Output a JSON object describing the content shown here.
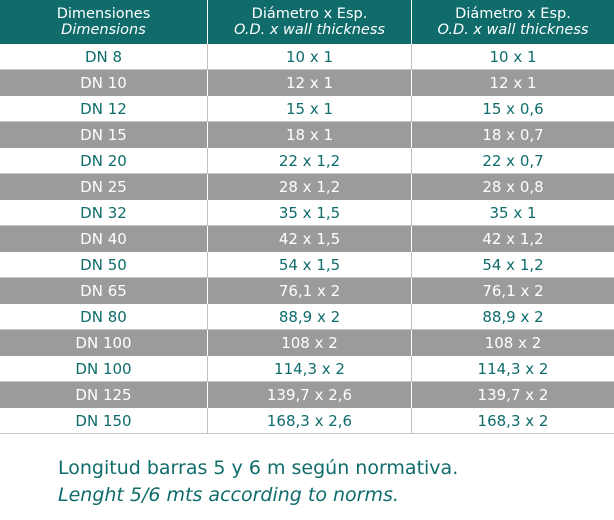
{
  "header": {
    "col1_es": "Dimensiones",
    "col1_en": "Dimensions",
    "col2_es": "Diámetro x Esp.",
    "col2_en": "O.D. x wall thickness",
    "col3_es": "Diámetro x Esp.",
    "col3_en": "O.D. x wall thickness"
  },
  "rows": [
    [
      "DN 8",
      "10 x 1",
      "10 x 1"
    ],
    [
      "DN 10",
      "12 x 1",
      "12 x 1"
    ],
    [
      "DN 12",
      "15 x 1",
      "15 x 0,6"
    ],
    [
      "DN 15",
      "18 x 1",
      "18 x 0,7"
    ],
    [
      "DN 20",
      "22 x 1,2",
      "22 x 0,7"
    ],
    [
      "DN 25",
      "28 x 1,2",
      "28 x 0,8"
    ],
    [
      "DN 32",
      "35 x 1,5",
      "35 x 1"
    ],
    [
      "DN 40",
      "42 x 1,5",
      "42 x 1,2"
    ],
    [
      "DN 50",
      "54 x 1,5",
      "54 x 1,2"
    ],
    [
      "DN 65",
      "76,1 x 2",
      "76,1 x 2"
    ],
    [
      "DN 80",
      "88,9 x 2",
      "88,9 x 2"
    ],
    [
      "DN 100",
      "108 x 2",
      "108 x 2"
    ],
    [
      "DN 100",
      "114,3 x 2",
      "114,3 x 2"
    ],
    [
      "DN 125",
      "139,7 x 2,6",
      "139,7 x 2"
    ],
    [
      "DN 150",
      "168,3 x 2,6",
      "168,3 x 2"
    ]
  ],
  "note": {
    "es": "Longitud barras 5 y 6 m según normativa.",
    "en": "Lenght 5/6 mts according to norms."
  },
  "colors": {
    "teal": "#0f6c6b",
    "grey_row": "#9b9b9b"
  }
}
